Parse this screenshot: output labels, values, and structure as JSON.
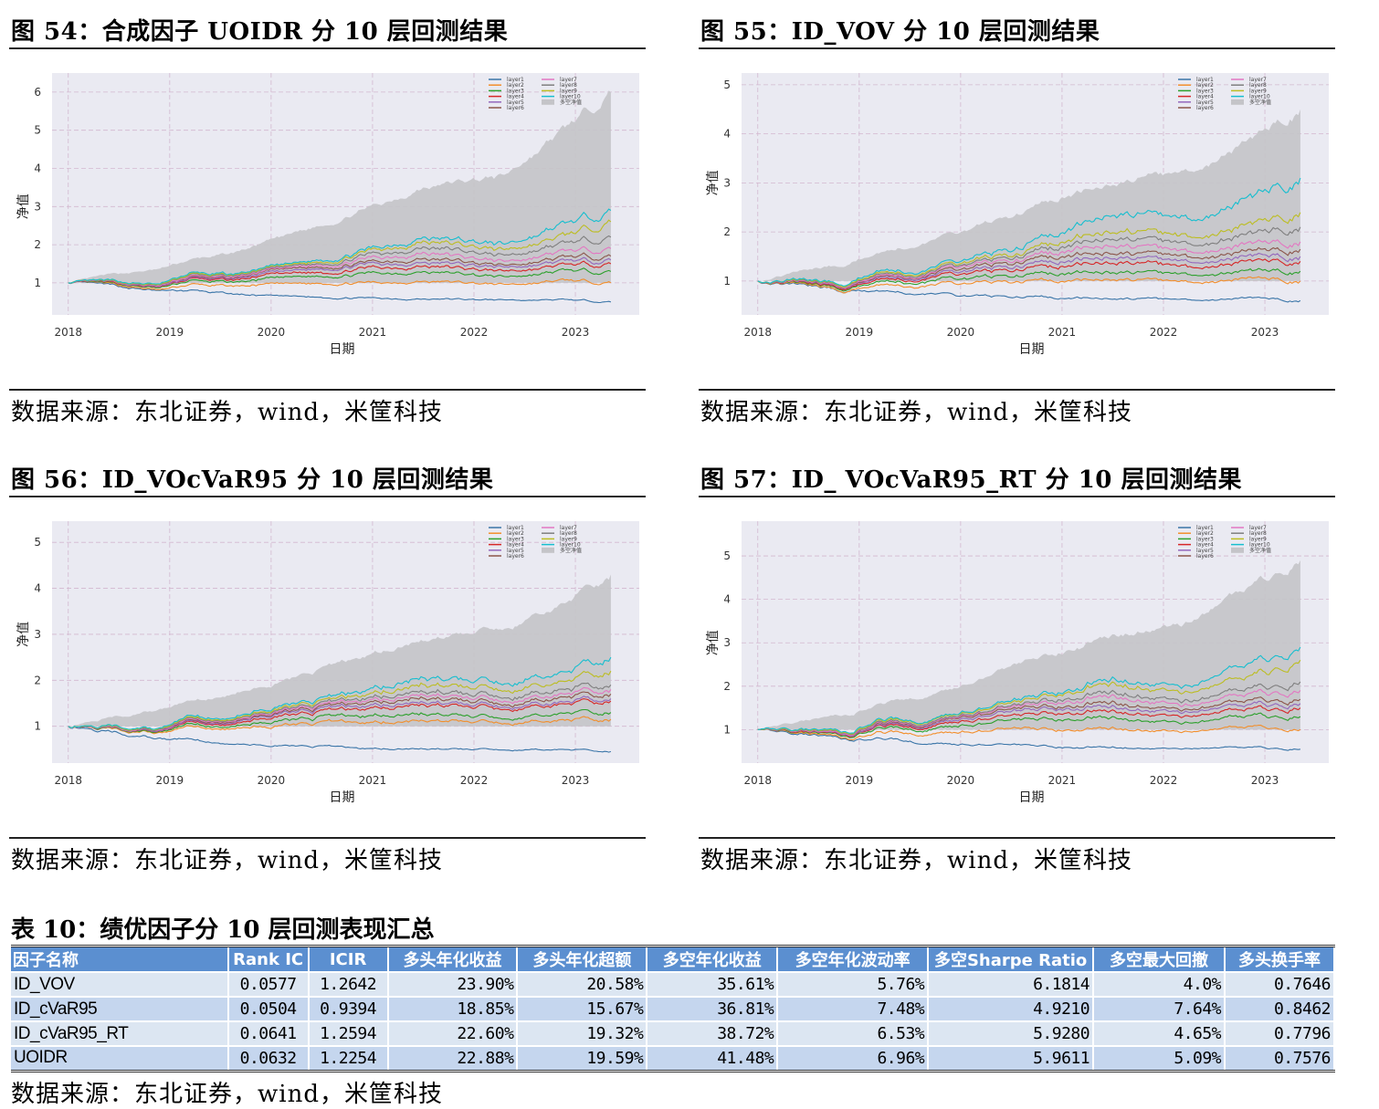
{
  "source_text": "数据来源：东北证券，wind，米筐科技",
  "chart_data": [
    {
      "type": "line",
      "title": "图 54：合成因子 UOIDR 分 10 层回测结果",
      "xlabel": "日期",
      "ylabel": "净值",
      "ylim": [
        0.16,
        6.5
      ],
      "yticks": [
        1,
        2,
        3,
        4,
        5,
        6
      ],
      "xticks": [
        "2018",
        "2019",
        "2020",
        "2021",
        "2022",
        "2023"
      ],
      "xlim": [
        2017.84,
        2023.63
      ],
      "grid": true,
      "legend": "top-right",
      "x": [
        2018.0,
        2018.4,
        2018.9,
        2019.2,
        2019.6,
        2020.0,
        2020.6,
        2021.0,
        2021.5,
        2022.3,
        2022.9,
        2023.35
      ],
      "series": [
        {
          "name": "layer1",
          "color": "#3a75a8",
          "values": [
            1,
            0.92,
            0.78,
            0.8,
            0.7,
            0.65,
            0.62,
            0.6,
            0.58,
            0.55,
            0.55,
            0.5
          ]
        },
        {
          "name": "layer2",
          "color": "#f28e2b",
          "values": [
            1,
            0.95,
            0.8,
            0.95,
            0.9,
            0.95,
            1.0,
            1.0,
            1.05,
            0.95,
            1.05,
            1.0
          ]
        },
        {
          "name": "layer3",
          "color": "#2ca02c",
          "values": [
            1,
            0.97,
            0.85,
            1.05,
            1.0,
            1.1,
            1.2,
            1.25,
            1.3,
            1.15,
            1.3,
            1.3
          ]
        },
        {
          "name": "layer4",
          "color": "#d62728",
          "values": [
            1,
            0.98,
            0.87,
            1.1,
            1.05,
            1.2,
            1.3,
            1.4,
            1.45,
            1.3,
            1.45,
            1.5
          ]
        },
        {
          "name": "layer5",
          "color": "#9467bd",
          "values": [
            1,
            0.99,
            0.88,
            1.12,
            1.08,
            1.25,
            1.4,
            1.5,
            1.55,
            1.4,
            1.55,
            1.6
          ]
        },
        {
          "name": "layer6",
          "color": "#8c564b",
          "values": [
            1,
            1.0,
            0.9,
            1.15,
            1.1,
            1.3,
            1.45,
            1.55,
            1.65,
            1.45,
            1.65,
            1.7
          ]
        },
        {
          "name": "layer7",
          "color": "#e377c2",
          "values": [
            1,
            1.0,
            0.9,
            1.17,
            1.12,
            1.32,
            1.5,
            1.65,
            1.8,
            1.55,
            1.8,
            1.9
          ]
        },
        {
          "name": "layer8",
          "color": "#7f7f7f",
          "values": [
            1,
            1.01,
            0.92,
            1.2,
            1.15,
            1.35,
            1.55,
            1.75,
            1.95,
            1.7,
            2.0,
            2.2
          ]
        },
        {
          "name": "layer9",
          "color": "#bcbd22",
          "values": [
            1,
            1.02,
            0.93,
            1.22,
            1.18,
            1.38,
            1.6,
            1.85,
            2.1,
            1.85,
            2.2,
            2.6
          ]
        },
        {
          "name": "layer10",
          "color": "#17becf",
          "values": [
            1,
            1.03,
            0.95,
            1.25,
            1.2,
            1.4,
            1.65,
            1.9,
            2.2,
            2.0,
            2.5,
            2.9
          ]
        },
        {
          "name": "多空净值",
          "color": "#c4c4c8",
          "area": true,
          "values": [
            1,
            1.2,
            1.35,
            1.6,
            1.75,
            2.1,
            2.6,
            3.0,
            3.5,
            3.8,
            5.0,
            6.0
          ]
        }
      ]
    },
    {
      "type": "line",
      "title": "图 55：ID_VOV 分 10 层回测结果",
      "xlabel": "日期",
      "ylabel": "净值",
      "ylim": [
        0.31,
        5.24
      ],
      "yticks": [
        1,
        2,
        3,
        4,
        5
      ],
      "xticks": [
        "2018",
        "2019",
        "2020",
        "2021",
        "2022",
        "2023"
      ],
      "xlim": [
        2017.84,
        2023.63
      ],
      "grid": true,
      "legend": "top-right",
      "x": [
        2018.0,
        2018.4,
        2018.9,
        2019.2,
        2019.6,
        2020.0,
        2020.6,
        2021.0,
        2021.5,
        2022.3,
        2022.9,
        2023.35
      ],
      "series": [
        {
          "name": "layer1",
          "color": "#3a75a8",
          "values": [
            1,
            0.93,
            0.8,
            0.82,
            0.75,
            0.7,
            0.68,
            0.65,
            0.65,
            0.6,
            0.65,
            0.6
          ]
        },
        {
          "name": "layer2",
          "color": "#f28e2b",
          "values": [
            1,
            0.95,
            0.8,
            0.95,
            0.9,
            0.95,
            1.0,
            1.0,
            1.05,
            0.95,
            1.05,
            1.0
          ]
        },
        {
          "name": "layer3",
          "color": "#2ca02c",
          "values": [
            1,
            0.97,
            0.84,
            1.02,
            0.98,
            1.05,
            1.12,
            1.15,
            1.2,
            1.1,
            1.2,
            1.2
          ]
        },
        {
          "name": "layer4",
          "color": "#d62728",
          "values": [
            1,
            0.98,
            0.86,
            1.07,
            1.03,
            1.15,
            1.25,
            1.3,
            1.4,
            1.25,
            1.4,
            1.4
          ]
        },
        {
          "name": "layer5",
          "color": "#9467bd",
          "values": [
            1,
            0.99,
            0.88,
            1.1,
            1.06,
            1.2,
            1.32,
            1.4,
            1.5,
            1.35,
            1.5,
            1.5
          ]
        },
        {
          "name": "layer6",
          "color": "#8c564b",
          "values": [
            1,
            1.0,
            0.89,
            1.13,
            1.09,
            1.25,
            1.4,
            1.5,
            1.6,
            1.45,
            1.6,
            1.65
          ]
        },
        {
          "name": "layer7",
          "color": "#e377c2",
          "values": [
            1,
            1.0,
            0.9,
            1.15,
            1.1,
            1.3,
            1.45,
            1.6,
            1.75,
            1.55,
            1.75,
            1.8
          ]
        },
        {
          "name": "layer8",
          "color": "#7f7f7f",
          "values": [
            1,
            1.01,
            0.92,
            1.18,
            1.13,
            1.33,
            1.52,
            1.7,
            1.9,
            1.7,
            1.95,
            2.1
          ]
        },
        {
          "name": "layer9",
          "color": "#bcbd22",
          "values": [
            1,
            1.02,
            0.93,
            1.21,
            1.16,
            1.37,
            1.58,
            1.8,
            2.05,
            1.85,
            2.15,
            2.4
          ]
        },
        {
          "name": "layer10",
          "color": "#17becf",
          "values": [
            1,
            1.03,
            0.95,
            1.25,
            1.2,
            1.42,
            1.7,
            2.0,
            2.4,
            2.2,
            2.7,
            3.1
          ]
        },
        {
          "name": "多空净值",
          "color": "#c4c4c8",
          "area": true,
          "values": [
            1,
            1.2,
            1.35,
            1.6,
            1.75,
            2.0,
            2.4,
            2.7,
            3.0,
            3.2,
            3.9,
            4.5
          ]
        }
      ]
    },
    {
      "type": "line",
      "title": "图 56：ID_VOcVaR95 分 10 层回测结果",
      "xlabel": "日期",
      "ylabel": "净值",
      "ylim": [
        0.2,
        5.46
      ],
      "yticks": [
        1,
        2,
        3,
        4,
        5
      ],
      "xticks": [
        "2018",
        "2019",
        "2020",
        "2021",
        "2022",
        "2023"
      ],
      "xlim": [
        2017.84,
        2023.63
      ],
      "grid": true,
      "legend": "top-right",
      "x": [
        2018.0,
        2018.4,
        2018.9,
        2019.2,
        2019.6,
        2020.0,
        2020.6,
        2021.0,
        2021.5,
        2022.3,
        2022.9,
        2023.35
      ],
      "series": [
        {
          "name": "layer1",
          "color": "#3a75a8",
          "values": [
            1,
            0.9,
            0.72,
            0.72,
            0.62,
            0.58,
            0.55,
            0.52,
            0.52,
            0.48,
            0.5,
            0.45
          ]
        },
        {
          "name": "layer2",
          "color": "#f28e2b",
          "values": [
            1,
            0.97,
            0.84,
            1.0,
            0.96,
            1.0,
            1.08,
            1.1,
            1.15,
            1.05,
            1.15,
            1.15
          ]
        },
        {
          "name": "layer3",
          "color": "#2ca02c",
          "values": [
            1,
            0.98,
            0.86,
            1.05,
            1.0,
            1.1,
            1.2,
            1.25,
            1.3,
            1.15,
            1.3,
            1.3
          ]
        },
        {
          "name": "layer4",
          "color": "#d62728",
          "values": [
            1,
            0.99,
            0.88,
            1.1,
            1.05,
            1.2,
            1.32,
            1.42,
            1.5,
            1.35,
            1.5,
            1.55
          ]
        },
        {
          "name": "layer5",
          "color": "#9467bd",
          "values": [
            1,
            0.99,
            0.88,
            1.12,
            1.08,
            1.25,
            1.38,
            1.48,
            1.55,
            1.4,
            1.55,
            1.6
          ]
        },
        {
          "name": "layer6",
          "color": "#8c564b",
          "values": [
            1,
            1.0,
            0.9,
            1.14,
            1.1,
            1.28,
            1.42,
            1.55,
            1.65,
            1.45,
            1.65,
            1.7
          ]
        },
        {
          "name": "layer7",
          "color": "#e377c2",
          "values": [
            1,
            1.0,
            0.9,
            1.16,
            1.12,
            1.3,
            1.46,
            1.6,
            1.72,
            1.52,
            1.72,
            1.8
          ]
        },
        {
          "name": "layer8",
          "color": "#7f7f7f",
          "values": [
            1,
            1.01,
            0.91,
            1.18,
            1.14,
            1.33,
            1.5,
            1.66,
            1.8,
            1.6,
            1.82,
            1.9
          ]
        },
        {
          "name": "layer9",
          "color": "#bcbd22",
          "values": [
            1,
            1.02,
            0.93,
            1.2,
            1.16,
            1.36,
            1.55,
            1.75,
            1.95,
            1.75,
            2.0,
            2.2
          ]
        },
        {
          "name": "layer10",
          "color": "#17becf",
          "values": [
            1,
            1.03,
            0.94,
            1.23,
            1.19,
            1.4,
            1.6,
            1.85,
            2.1,
            1.9,
            2.2,
            2.5
          ]
        },
        {
          "name": "多空净值",
          "color": "#c4c4c8",
          "area": true,
          "values": [
            1,
            1.2,
            1.35,
            1.55,
            1.7,
            1.9,
            2.3,
            2.6,
            2.9,
            3.1,
            3.7,
            4.3
          ]
        }
      ]
    },
    {
      "type": "line",
      "title": "图 57：ID_ VOcVaR95_RT 分 10 层回测结果",
      "xlabel": "日期",
      "ylabel": "净值",
      "ylim": [
        0.23,
        5.8
      ],
      "yticks": [
        1,
        2,
        3,
        4,
        5
      ],
      "xticks": [
        "2018",
        "2019",
        "2020",
        "2021",
        "2022",
        "2023"
      ],
      "xlim": [
        2017.84,
        2023.63
      ],
      "grid": true,
      "legend": "top-right",
      "x": [
        2018.0,
        2018.4,
        2018.9,
        2019.2,
        2019.6,
        2020.0,
        2020.6,
        2021.0,
        2021.5,
        2022.3,
        2022.9,
        2023.35
      ],
      "series": [
        {
          "name": "layer1",
          "color": "#3a75a8",
          "values": [
            1,
            0.92,
            0.78,
            0.8,
            0.7,
            0.66,
            0.63,
            0.6,
            0.6,
            0.56,
            0.58,
            0.55
          ]
        },
        {
          "name": "layer2",
          "color": "#f28e2b",
          "values": [
            1,
            0.95,
            0.8,
            0.95,
            0.9,
            0.95,
            1.0,
            1.0,
            1.05,
            0.95,
            1.05,
            1.0
          ]
        },
        {
          "name": "layer3",
          "color": "#2ca02c",
          "values": [
            1,
            0.97,
            0.85,
            1.05,
            1.0,
            1.1,
            1.2,
            1.25,
            1.3,
            1.15,
            1.3,
            1.3
          ]
        },
        {
          "name": "layer4",
          "color": "#d62728",
          "values": [
            1,
            0.98,
            0.87,
            1.1,
            1.05,
            1.2,
            1.3,
            1.4,
            1.45,
            1.3,
            1.45,
            1.5
          ]
        },
        {
          "name": "layer5",
          "color": "#9467bd",
          "values": [
            1,
            0.99,
            0.88,
            1.12,
            1.08,
            1.25,
            1.4,
            1.5,
            1.55,
            1.4,
            1.55,
            1.6
          ]
        },
        {
          "name": "layer6",
          "color": "#8c564b",
          "values": [
            1,
            1.0,
            0.9,
            1.15,
            1.1,
            1.3,
            1.45,
            1.55,
            1.65,
            1.45,
            1.65,
            1.7
          ]
        },
        {
          "name": "layer7",
          "color": "#e377c2",
          "values": [
            1,
            1.0,
            0.9,
            1.17,
            1.12,
            1.32,
            1.5,
            1.65,
            1.8,
            1.55,
            1.8,
            1.9
          ]
        },
        {
          "name": "layer8",
          "color": "#7f7f7f",
          "values": [
            1,
            1.01,
            0.92,
            1.19,
            1.14,
            1.34,
            1.53,
            1.72,
            1.9,
            1.65,
            1.92,
            2.1
          ]
        },
        {
          "name": "layer9",
          "color": "#bcbd22",
          "values": [
            1,
            1.02,
            0.93,
            1.22,
            1.18,
            1.38,
            1.6,
            1.85,
            2.1,
            1.85,
            2.2,
            2.6
          ]
        },
        {
          "name": "layer10",
          "color": "#17becf",
          "values": [
            1,
            1.03,
            0.95,
            1.25,
            1.2,
            1.4,
            1.65,
            1.9,
            2.2,
            2.0,
            2.5,
            2.9
          ]
        },
        {
          "name": "多空净值",
          "color": "#c4c4c8",
          "area": true,
          "values": [
            1,
            1.2,
            1.35,
            1.6,
            1.75,
            2.0,
            2.5,
            2.8,
            3.2,
            3.5,
            4.3,
            4.9
          ]
        }
      ]
    }
  ],
  "table": {
    "title": "表 10：绩优因子分 10 层回测表现汇总",
    "headers": [
      "因子名称",
      "Rank IC",
      "ICIR",
      "多头年化收益",
      "多头年化超额",
      "多空年化收益",
      "多空年化波动率",
      "多空Sharpe Ratio",
      "多空最大回撤",
      "多头换手率"
    ],
    "rows": [
      [
        "ID_VOV",
        "0.0577",
        "1.2642",
        "23.90%",
        "20.58%",
        "35.61%",
        "5.76%",
        "6.1814",
        "4.0%",
        "0.7646"
      ],
      [
        "ID_cVaR95",
        "0.0504",
        "0.9394",
        "18.85%",
        "15.67%",
        "36.81%",
        "7.48%",
        "4.9210",
        "7.64%",
        "0.8462"
      ],
      [
        "ID_cVaR95_RT",
        "0.0641",
        "1.2594",
        "22.60%",
        "19.32%",
        "38.72%",
        "6.53%",
        "5.9280",
        "4.65%",
        "0.7796"
      ],
      [
        "UOIDR",
        "0.0632",
        "1.2254",
        "22.88%",
        "19.59%",
        "41.48%",
        "6.96%",
        "5.9611",
        "5.09%",
        "0.7576"
      ]
    ]
  }
}
